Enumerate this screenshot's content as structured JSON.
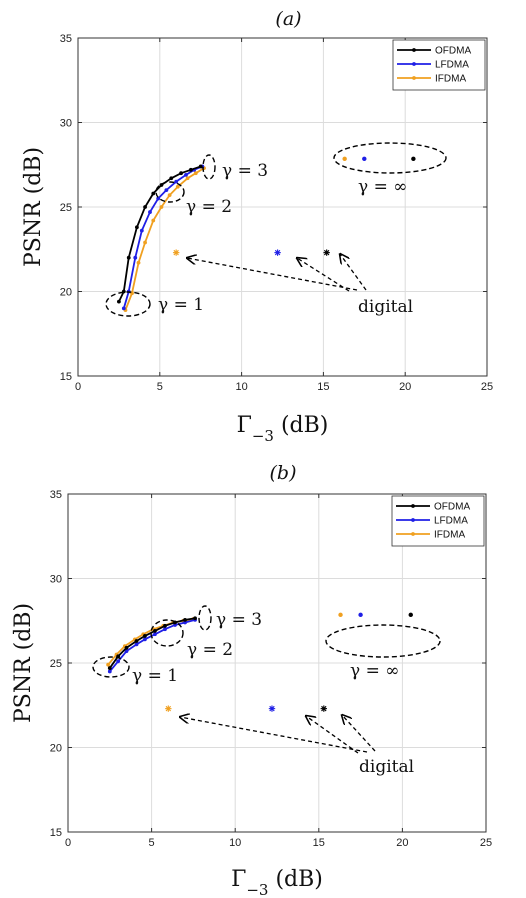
{
  "chart_data": [
    {
      "type": "line",
      "title": "(a)",
      "xlabel": "Γ₋₃ (dB)",
      "ylabel": "PSNR (dB)",
      "xlim": [
        0,
        25
      ],
      "ylim": [
        15,
        35
      ],
      "xticks": [
        0,
        5,
        10,
        15,
        20,
        25
      ],
      "yticks": [
        15,
        20,
        25,
        30,
        35
      ],
      "grid": true,
      "legend_position": "top-right",
      "series": [
        {
          "name": "OFDMA",
          "color": "#000000",
          "x": [
            2.5,
            2.8,
            3.1,
            3.6,
            4.1,
            4.6,
            5.1,
            5.7,
            6.3,
            6.9,
            7.5
          ],
          "y": [
            19.4,
            20.0,
            22.0,
            23.8,
            25.0,
            25.8,
            26.3,
            26.7,
            27.0,
            27.2,
            27.4
          ]
        },
        {
          "name": "LFDMA",
          "color": "#1f1fe6",
          "x": [
            2.8,
            3.1,
            3.5,
            3.9,
            4.4,
            4.9,
            5.4,
            6.0,
            6.6,
            7.1,
            7.6
          ],
          "y": [
            19.0,
            20.0,
            22.0,
            23.6,
            24.7,
            25.5,
            26.0,
            26.5,
            26.9,
            27.2,
            27.4
          ]
        },
        {
          "name": "IFDMA",
          "color": "#f0a020",
          "x": [
            2.9,
            3.3,
            3.7,
            4.1,
            4.6,
            5.1,
            5.6,
            6.1,
            6.7,
            7.2,
            7.7
          ],
          "y": [
            18.9,
            19.9,
            21.7,
            22.9,
            24.2,
            25.0,
            25.7,
            26.2,
            26.7,
            27.0,
            27.3
          ]
        }
      ],
      "digital_points": [
        {
          "series": "OFDMA",
          "x": 15.2,
          "y": 22.3
        },
        {
          "series": "LFDMA",
          "x": 12.2,
          "y": 22.3
        },
        {
          "series": "IFDMA",
          "x": 6.0,
          "y": 22.3
        }
      ],
      "infinity_points": [
        {
          "series": "OFDMA",
          "x": 20.5,
          "y": 27.85
        },
        {
          "series": "LFDMA",
          "x": 17.5,
          "y": 27.85
        },
        {
          "series": "IFDMA",
          "x": 16.3,
          "y": 27.85
        }
      ],
      "annotations": {
        "gamma1": "γ = 1",
        "gamma2": "γ = 2",
        "gamma3": "γ = 3",
        "gammaInf": "γ = ∞",
        "digital": "digital"
      }
    },
    {
      "type": "line",
      "title": "(b)",
      "xlabel": "Γ₋₃ (dB)",
      "ylabel": "PSNR (dB)",
      "xlim": [
        0,
        25
      ],
      "ylim": [
        15,
        35
      ],
      "xticks": [
        0,
        5,
        10,
        15,
        20,
        25
      ],
      "yticks": [
        15,
        20,
        25,
        30,
        35
      ],
      "grid": true,
      "legend_position": "top-right",
      "series": [
        {
          "name": "OFDMA",
          "color": "#000000",
          "x": [
            2.5,
            3.0,
            3.5,
            4.1,
            4.6,
            5.2,
            5.8,
            6.4,
            7.0,
            7.6
          ],
          "y": [
            24.7,
            25.4,
            25.9,
            26.3,
            26.6,
            26.9,
            27.2,
            27.4,
            27.55,
            27.65
          ]
        },
        {
          "name": "LFDMA",
          "color": "#1f1fe6",
          "x": [
            2.5,
            3.0,
            3.5,
            4.1,
            4.6,
            5.2,
            5.8,
            6.4,
            7.0,
            7.6
          ],
          "y": [
            24.5,
            25.1,
            25.7,
            26.1,
            26.4,
            26.7,
            27.0,
            27.25,
            27.4,
            27.55
          ]
        },
        {
          "name": "IFDMA",
          "color": "#f0a020",
          "x": [
            2.4,
            2.9,
            3.4,
            4.0,
            4.5,
            5.1,
            5.7,
            6.3,
            6.9,
            7.5
          ],
          "y": [
            24.9,
            25.5,
            26.0,
            26.4,
            26.7,
            27.0,
            27.2,
            27.4,
            27.5,
            27.6
          ]
        }
      ],
      "digital_points": [
        {
          "series": "OFDMA",
          "x": 15.3,
          "y": 22.3
        },
        {
          "series": "LFDMA",
          "x": 12.2,
          "y": 22.3
        },
        {
          "series": "IFDMA",
          "x": 6.0,
          "y": 22.3
        }
      ],
      "infinity_points": [
        {
          "series": "OFDMA",
          "x": 20.5,
          "y": 27.85
        },
        {
          "series": "LFDMA",
          "x": 17.5,
          "y": 27.85
        },
        {
          "series": "IFDMA",
          "x": 16.3,
          "y": 27.85
        }
      ],
      "annotations": {
        "gamma1": "γ = 1",
        "gamma2": "γ = 2",
        "gamma3": "γ = 3",
        "gammaInf": "γ = ∞",
        "digital": "digital"
      }
    }
  ]
}
